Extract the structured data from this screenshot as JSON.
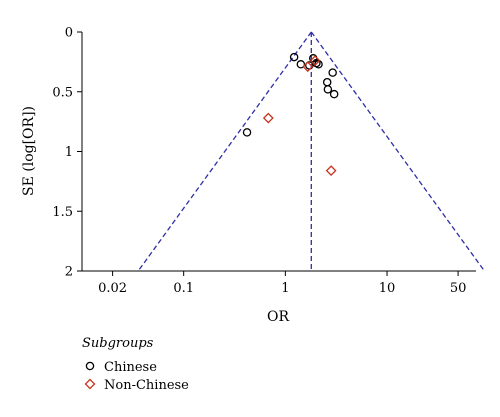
{
  "chart_data": {
    "type": "scatter",
    "title": "",
    "xlabel": "OR",
    "ylabel": "SE (log[OR])",
    "x_scale": "log",
    "y_inverted": true,
    "xlim": [
      0.01,
      75
    ],
    "ylim": [
      0,
      2
    ],
    "x_ticks": [
      0.02,
      0.1,
      1,
      10,
      50
    ],
    "x_tick_labels": [
      "0.02",
      "0.1",
      "1",
      "10",
      "50"
    ],
    "y_ticks": [
      0,
      0.5,
      1,
      1.5,
      2
    ],
    "y_tick_labels": [
      "0",
      "0.5",
      "1",
      "1.5",
      "2"
    ],
    "pooled_or": 1.8,
    "funnel_se_max": 2,
    "grid": false,
    "legend": {
      "title": "Subgroups",
      "placement": "bottom-left",
      "entries": [
        {
          "label": "Chinese",
          "marker": "circle",
          "color": "#000000"
        },
        {
          "label": "Non-Chinese",
          "marker": "diamond",
          "color": "#c8321e"
        }
      ]
    },
    "series": [
      {
        "name": "Chinese",
        "marker": "circle",
        "color": "#000000",
        "points": [
          {
            "x": 0.42,
            "y": 0.84
          },
          {
            "x": 1.22,
            "y": 0.21
          },
          {
            "x": 1.42,
            "y": 0.27
          },
          {
            "x": 1.72,
            "y": 0.28
          },
          {
            "x": 1.88,
            "y": 0.22
          },
          {
            "x": 2.02,
            "y": 0.26
          },
          {
            "x": 2.12,
            "y": 0.27
          },
          {
            "x": 2.58,
            "y": 0.42
          },
          {
            "x": 2.62,
            "y": 0.48
          },
          {
            "x": 2.92,
            "y": 0.34
          },
          {
            "x": 3.02,
            "y": 0.52
          }
        ]
      },
      {
        "name": "Non-Chinese",
        "marker": "diamond",
        "color": "#c8321e",
        "points": [
          {
            "x": 0.68,
            "y": 0.72
          },
          {
            "x": 1.66,
            "y": 0.29
          },
          {
            "x": 1.96,
            "y": 0.24
          },
          {
            "x": 2.82,
            "y": 1.16
          }
        ]
      }
    ]
  }
}
